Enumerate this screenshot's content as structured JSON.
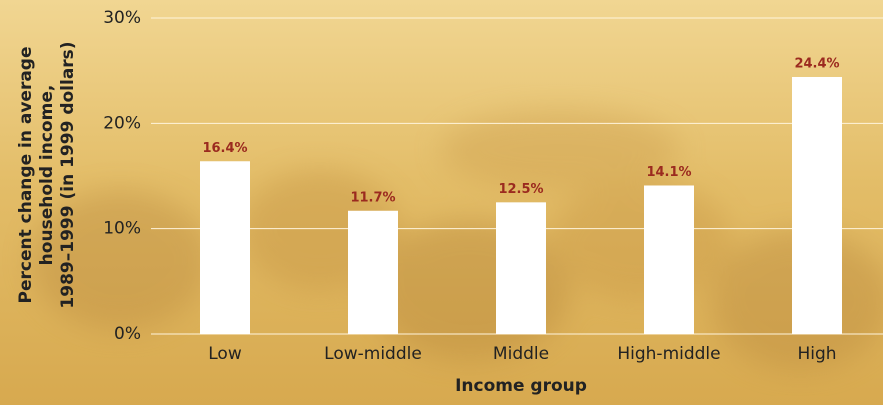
{
  "chart_data": {
    "type": "bar",
    "ylabel": [
      "Percent change in average",
      "household income,",
      "1989–1999 (in 1999 dollars)"
    ],
    "xlabel": "Income group",
    "categories": [
      "Low",
      "Low-middle",
      "Middle",
      "High-middle",
      "High"
    ],
    "values": [
      16.4,
      11.7,
      12.5,
      14.1,
      24.4
    ],
    "value_labels": [
      "16.4%",
      "11.7%",
      "12.5%",
      "14.1%",
      "24.4%"
    ],
    "color": "#ffffff",
    "label_color": "#9b2a1f",
    "ylim": [
      0,
      30
    ],
    "yticks": [
      {
        "value": 0,
        "label": "0%"
      },
      {
        "value": 10,
        "label": "10%"
      },
      {
        "value": 20,
        "label": "20%"
      },
      {
        "value": 30,
        "label": "30%"
      }
    ],
    "grid": true
  }
}
